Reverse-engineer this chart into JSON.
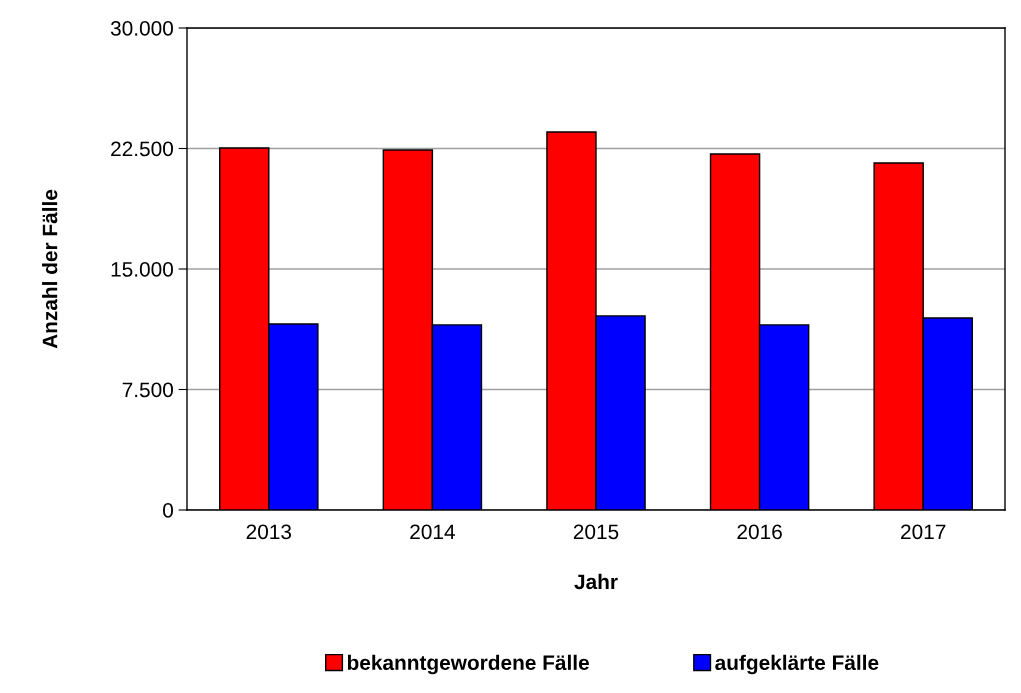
{
  "chart_data": {
    "type": "bar",
    "xlabel": "Jahr",
    "ylabel": "Anzahl der Fälle",
    "categories": [
      "2013",
      "2014",
      "2015",
      "2016",
      "2017"
    ],
    "series": [
      {
        "name": "bekanntgewordene Fälle",
        "color": "#ff0000",
        "values": [
          22530,
          22410,
          23530,
          22160,
          21600
        ]
      },
      {
        "name": "aufgeklärte Fälle",
        "color": "#0000ff",
        "values": [
          11580,
          11520,
          12080,
          11520,
          11950
        ]
      }
    ],
    "ylim": [
      0,
      30000
    ],
    "yticks": [
      {
        "value": 0,
        "label": "0"
      },
      {
        "value": 7500,
        "label": "7.500"
      },
      {
        "value": 15000,
        "label": "15.000"
      },
      {
        "value": 22500,
        "label": "22.500"
      },
      {
        "value": 30000,
        "label": "30.000"
      }
    ],
    "grid": "y",
    "legend": "bottom"
  }
}
